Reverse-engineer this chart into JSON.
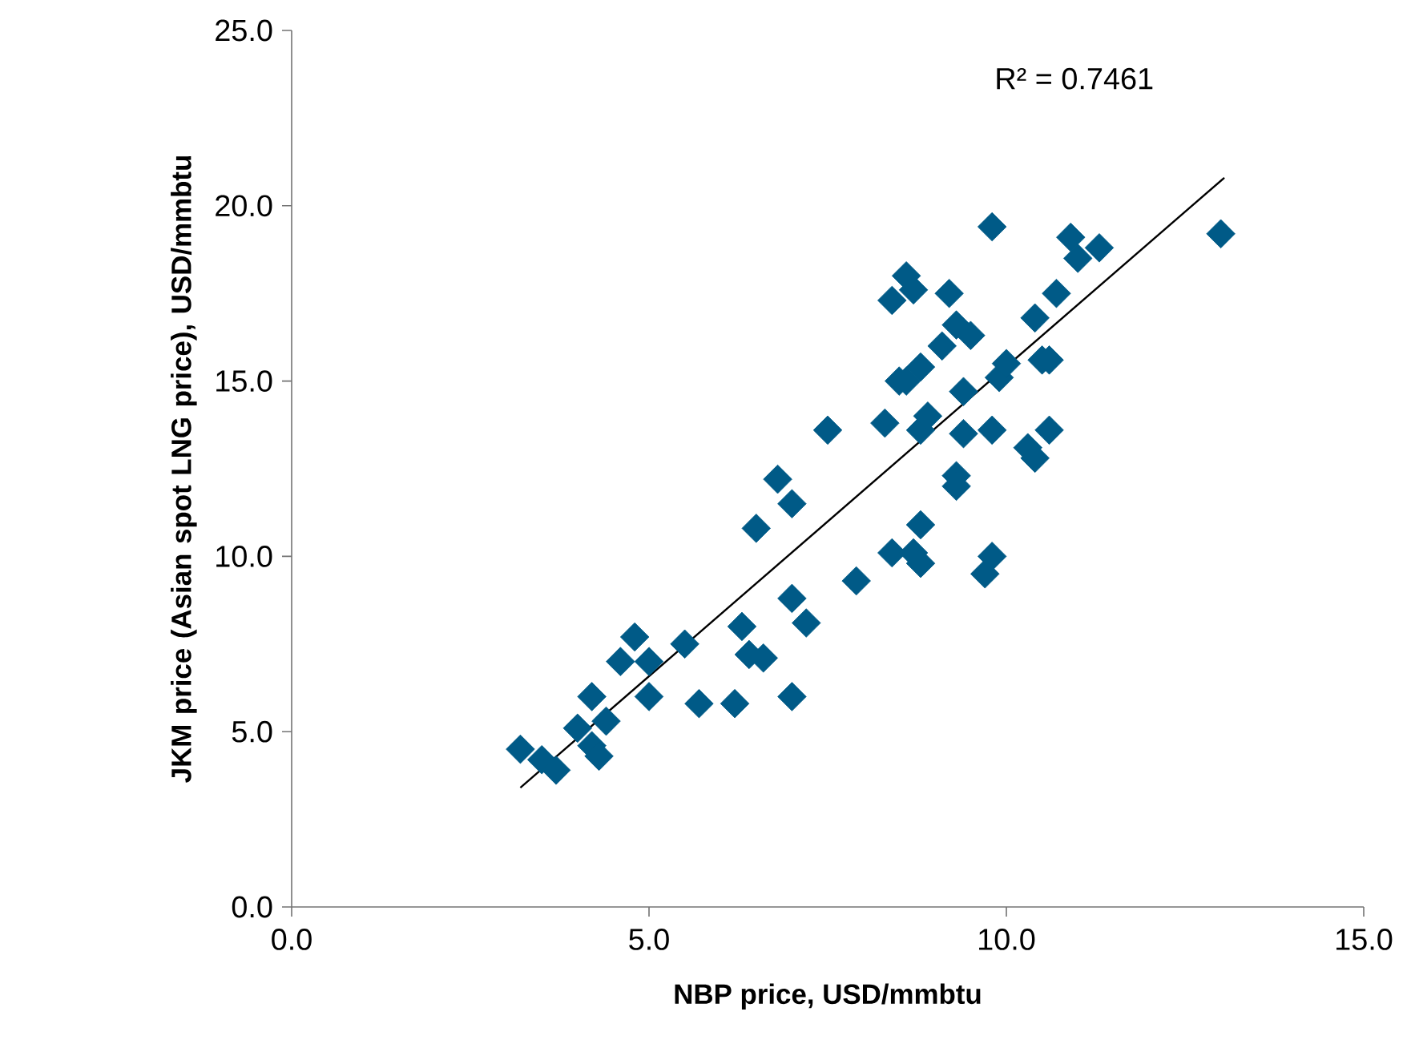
{
  "chart_data": {
    "type": "scatter",
    "xlabel": "NBP price, USD/mmbtu",
    "ylabel": "JKM price (Asian spot LNG price), USD/mmbtu",
    "annotations": [
      "R² = 0.7461"
    ],
    "xlim": [
      0,
      15
    ],
    "ylim": [
      0,
      25
    ],
    "xticks": [
      {
        "value": 0,
        "label": "0.0"
      },
      {
        "value": 5,
        "label": "5.0"
      },
      {
        "value": 10,
        "label": "10.0"
      },
      {
        "value": 15,
        "label": "15.0"
      }
    ],
    "yticks": [
      {
        "value": 0,
        "label": "0.0"
      },
      {
        "value": 5,
        "label": "5.0"
      },
      {
        "value": 10,
        "label": "10.0"
      },
      {
        "value": 15,
        "label": "15.0"
      },
      {
        "value": 20,
        "label": "20.0"
      },
      {
        "value": 25,
        "label": "25.0"
      }
    ],
    "grid": false,
    "series": [
      {
        "color": "#005a87",
        "marker": "diamond",
        "x": [
          3.2,
          3.5,
          3.7,
          4.0,
          4.2,
          4.3,
          4.2,
          4.4,
          4.6,
          4.8,
          5.0,
          5.0,
          5.5,
          5.7,
          6.2,
          6.3,
          6.4,
          6.5,
          6.6,
          6.8,
          7.0,
          7.0,
          7.0,
          7.2,
          7.5,
          7.9,
          8.3,
          8.4,
          8.5,
          8.4,
          8.6,
          8.6,
          8.7,
          8.7,
          8.8,
          8.8,
          8.8,
          8.8,
          8.9,
          9.1,
          9.2,
          9.3,
          9.3,
          9.3,
          9.4,
          9.4,
          9.5,
          9.7,
          9.8,
          9.8,
          9.8,
          9.9,
          10.0,
          10.3,
          10.4,
          10.4,
          10.5,
          10.6,
          10.6,
          10.7,
          10.9,
          11.0,
          11.3,
          13.0
        ],
        "values": [
          4.5,
          4.2,
          3.9,
          5.1,
          4.6,
          4.3,
          6.0,
          5.3,
          7.0,
          7.7,
          7.0,
          6.0,
          7.5,
          5.8,
          5.8,
          8.0,
          7.2,
          10.8,
          7.1,
          12.2,
          6.0,
          8.8,
          11.5,
          8.1,
          13.6,
          9.3,
          13.8,
          17.3,
          15.0,
          10.1,
          18.0,
          15.0,
          10.1,
          17.6,
          15.4,
          10.9,
          9.8,
          13.6,
          14.0,
          16.0,
          17.5,
          16.6,
          12.3,
          12.0,
          13.5,
          14.7,
          16.3,
          9.5,
          10.0,
          13.6,
          19.4,
          15.1,
          15.5,
          13.1,
          12.8,
          16.8,
          15.6,
          15.6,
          13.6,
          17.5,
          19.1,
          18.5,
          18.8,
          19.2
        ]
      },
      {
        "type": "line",
        "color": "#000000",
        "x": [
          3.2,
          13.05
        ],
        "values": [
          3.4,
          20.8
        ]
      }
    ]
  }
}
